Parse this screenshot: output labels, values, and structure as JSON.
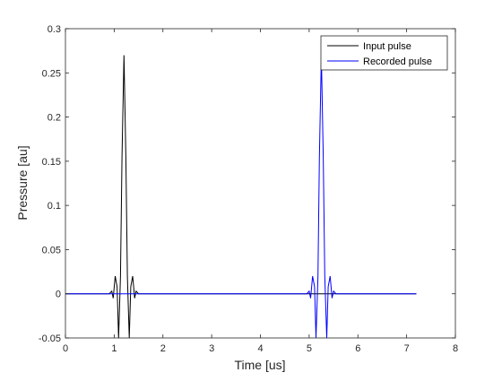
{
  "chart_data": {
    "type": "line",
    "title": "",
    "xlabel": "Time [us]",
    "ylabel": "Pressure [au]",
    "xlim": [
      0,
      8
    ],
    "ylim": [
      -0.05,
      0.3
    ],
    "xticks": [
      0,
      1,
      2,
      3,
      4,
      5,
      6,
      7,
      8
    ],
    "xtick_labels": [
      "0",
      "1",
      "2",
      "3",
      "4",
      "5",
      "6",
      "7",
      "8"
    ],
    "yticks": [
      -0.05,
      0,
      0.05,
      0.1,
      0.15,
      0.2,
      0.25,
      0.3
    ],
    "ytick_labels": [
      "-0.05",
      "0",
      "0.05",
      "0.1",
      "0.15",
      "0.2",
      "0.25",
      "0.3"
    ],
    "grid": false,
    "legend_location": "top-right",
    "series": [
      {
        "name": "Input pulse",
        "color": "#000000",
        "x": [
          0,
          0.9,
          0.95,
          0.98,
          1.02,
          1.06,
          1.09,
          1.13,
          1.16,
          1.2,
          1.24,
          1.27,
          1.31,
          1.34,
          1.38,
          1.42,
          1.45,
          1.5,
          7.2
        ],
        "y": [
          0,
          0,
          0.003,
          -0.005,
          0.02,
          0.008,
          -0.05,
          0.02,
          0.155,
          0.27,
          0.155,
          0.02,
          -0.05,
          0.008,
          0.02,
          -0.005,
          0.003,
          0,
          0
        ]
      },
      {
        "name": "Recorded pulse",
        "color": "#0000ff",
        "x": [
          0,
          4.95,
          5.0,
          5.03,
          5.07,
          5.11,
          5.14,
          5.18,
          5.21,
          5.25,
          5.29,
          5.32,
          5.36,
          5.39,
          5.43,
          5.47,
          5.5,
          5.55,
          7.2
        ],
        "y": [
          0,
          0,
          0.003,
          -0.005,
          0.02,
          0.008,
          -0.05,
          0.02,
          0.155,
          0.27,
          0.155,
          0.02,
          -0.05,
          0.008,
          0.02,
          -0.005,
          0.003,
          0,
          0
        ]
      }
    ]
  }
}
